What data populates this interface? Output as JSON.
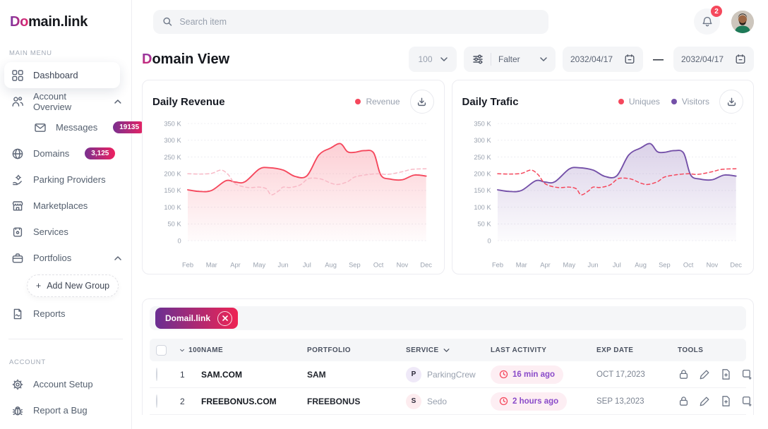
{
  "brand": {
    "accent": "Do",
    "rest": "main.link"
  },
  "topbar": {
    "search_placeholder": "Search item",
    "notification_count": "2"
  },
  "sidebar": {
    "main_menu_label": "MAIN MENU",
    "account_label": "ACCOUNT",
    "dashboard": "Dashboard",
    "account_overview": "Account Overview",
    "messages": "Messages",
    "messages_badge": "19135",
    "domains": "Domains",
    "domains_badge": "3,125",
    "parking_providers": "Parking Providers",
    "marketplaces": "Marketplaces",
    "services": "Services",
    "portfolios": "Portfolios",
    "add_group_plus": "+",
    "add_group": "Add New Group",
    "reports": "Reports",
    "account_setup": "Account Setup",
    "report_a_bug": "Report a Bug"
  },
  "page_header": {
    "title_accent": "D",
    "title_rest": "omain View",
    "per_page": "100",
    "filter_label": "Falter",
    "date_from": "2032/04/17",
    "date_separator": "—",
    "date_to": "2032/04/17"
  },
  "chart_data": [
    {
      "type": "line",
      "title": "Daily Revenue",
      "legend": [
        {
          "label": "Revenue",
          "color": "#F5475C"
        }
      ],
      "categories": [
        "Feb",
        "Mar",
        "Apr",
        "May",
        "Jun",
        "Jul",
        "Aug",
        "Sep",
        "Oct",
        "Nov",
        "Dec"
      ],
      "y_ticks": [
        "350 K",
        "300 K",
        "250 K",
        "200 K",
        "150 K",
        "100 K",
        "50 K",
        "0"
      ],
      "ylim": [
        0,
        350
      ],
      "y_unit": "K",
      "grid": true,
      "legend_position": "top-right",
      "series": [
        {
          "name": "Revenue",
          "style": "solid",
          "color": "#F5475C",
          "fill": true,
          "points": [
            [
              0,
              152
            ],
            [
              0.5,
              147
            ],
            [
              1,
              150
            ],
            [
              1.6,
              179
            ],
            [
              2,
              175
            ],
            [
              2.4,
              176
            ],
            [
              3,
              214
            ],
            [
              3.4,
              218
            ],
            [
              4,
              211
            ],
            [
              4.5,
              192
            ],
            [
              5,
              194
            ],
            [
              5.5,
              256
            ],
            [
              6,
              277
            ],
            [
              6.4,
              290
            ],
            [
              6.7,
              266
            ],
            [
              7,
              264
            ],
            [
              7.4,
              269
            ],
            [
              7.8,
              262
            ],
            [
              8.1,
              196
            ],
            [
              8.5,
              184
            ],
            [
              9,
              182
            ],
            [
              9.5,
              196
            ],
            [
              10,
              193
            ]
          ]
        },
        {
          "name": "",
          "style": "dashed",
          "color": "#F8B9C6",
          "fill": false,
          "points": [
            [
              0,
              200
            ],
            [
              0.5,
              199
            ],
            [
              1,
              201
            ],
            [
              1.4,
              211
            ],
            [
              1.7,
              197
            ],
            [
              2,
              170
            ],
            [
              2.5,
              159
            ],
            [
              3,
              160
            ],
            [
              3.3,
              155
            ],
            [
              3.5,
              137
            ],
            [
              3.8,
              148
            ],
            [
              4,
              160
            ],
            [
              4.3,
              159
            ],
            [
              4.7,
              166
            ],
            [
              5,
              183
            ],
            [
              5.2,
              187
            ],
            [
              5.6,
              184
            ],
            [
              6,
              172
            ],
            [
              6.3,
              168
            ],
            [
              6.7,
              176
            ],
            [
              7,
              190
            ],
            [
              7.5,
              197
            ],
            [
              8,
              200
            ],
            [
              8.4,
              198
            ],
            [
              9,
              206
            ],
            [
              9.4,
              213
            ],
            [
              10,
              215
            ]
          ]
        }
      ]
    },
    {
      "type": "line",
      "title": "Daily Trafic",
      "legend": [
        {
          "label": "Uniques",
          "color": "#F5475C"
        },
        {
          "label": "Visitors",
          "color": "#7450A8"
        }
      ],
      "categories": [
        "Feb",
        "Mar",
        "Apr",
        "May",
        "Jun",
        "Jul",
        "Aug",
        "Sep",
        "Oct",
        "Nov",
        "Dec"
      ],
      "y_ticks": [
        "350 K",
        "300 K",
        "250 K",
        "200 K",
        "150 K",
        "100 K",
        "50 K",
        "0"
      ],
      "ylim": [
        0,
        350
      ],
      "y_unit": "K",
      "grid": true,
      "legend_position": "top-right",
      "series": [
        {
          "name": "Visitors",
          "style": "solid",
          "color": "#7450A8",
          "fill": true,
          "points": [
            [
              0,
              152
            ],
            [
              0.5,
              147
            ],
            [
              1,
              150
            ],
            [
              1.6,
              179
            ],
            [
              2,
              175
            ],
            [
              2.4,
              176
            ],
            [
              3,
              214
            ],
            [
              3.4,
              218
            ],
            [
              4,
              211
            ],
            [
              4.5,
              192
            ],
            [
              5,
              194
            ],
            [
              5.5,
              256
            ],
            [
              6,
              277
            ],
            [
              6.4,
              290
            ],
            [
              6.7,
              266
            ],
            [
              7,
              264
            ],
            [
              7.4,
              269
            ],
            [
              7.8,
              262
            ],
            [
              8.1,
              196
            ],
            [
              8.5,
              184
            ],
            [
              9,
              182
            ],
            [
              9.5,
              196
            ],
            [
              10,
              193
            ]
          ]
        },
        {
          "name": "Uniques",
          "style": "dashed",
          "color": "#F5475C",
          "fill": false,
          "points": [
            [
              0,
              200
            ],
            [
              0.5,
              199
            ],
            [
              1,
              201
            ],
            [
              1.4,
              211
            ],
            [
              1.7,
              197
            ],
            [
              2,
              170
            ],
            [
              2.5,
              159
            ],
            [
              3,
              160
            ],
            [
              3.3,
              155
            ],
            [
              3.5,
              137
            ],
            [
              3.8,
              148
            ],
            [
              4,
              160
            ],
            [
              4.3,
              159
            ],
            [
              4.7,
              166
            ],
            [
              5,
              183
            ],
            [
              5.2,
              187
            ],
            [
              5.6,
              184
            ],
            [
              6,
              172
            ],
            [
              6.3,
              168
            ],
            [
              6.7,
              176
            ],
            [
              7,
              190
            ],
            [
              7.5,
              197
            ],
            [
              8,
              200
            ],
            [
              8.4,
              198
            ],
            [
              9,
              206
            ],
            [
              9.4,
              213
            ],
            [
              10,
              215
            ]
          ]
        }
      ]
    }
  ],
  "table": {
    "chip_label": "Domail.link",
    "header": {
      "count": "100",
      "name": "NAME",
      "portfolio": "PORTFOLIO",
      "service": "SERVICE",
      "last_activity": "LAST ACTIVITY",
      "exp_date": "EXP DATE",
      "tools": "TOOLS"
    },
    "rows": [
      {
        "num": "1",
        "name": "SAM.COM",
        "portfolio": "SAM",
        "service_initial": "P",
        "service": "ParkingCrew",
        "last_activity": "16 min ago",
        "exp_date": "OCT 17,2023"
      },
      {
        "num": "2",
        "name": "FREEBONUS.COM",
        "portfolio": "FREEBONUS",
        "service_initial": "S",
        "service": "Sedo",
        "last_activity": "2 hours ago",
        "exp_date": "SEP 13,2023"
      }
    ]
  }
}
